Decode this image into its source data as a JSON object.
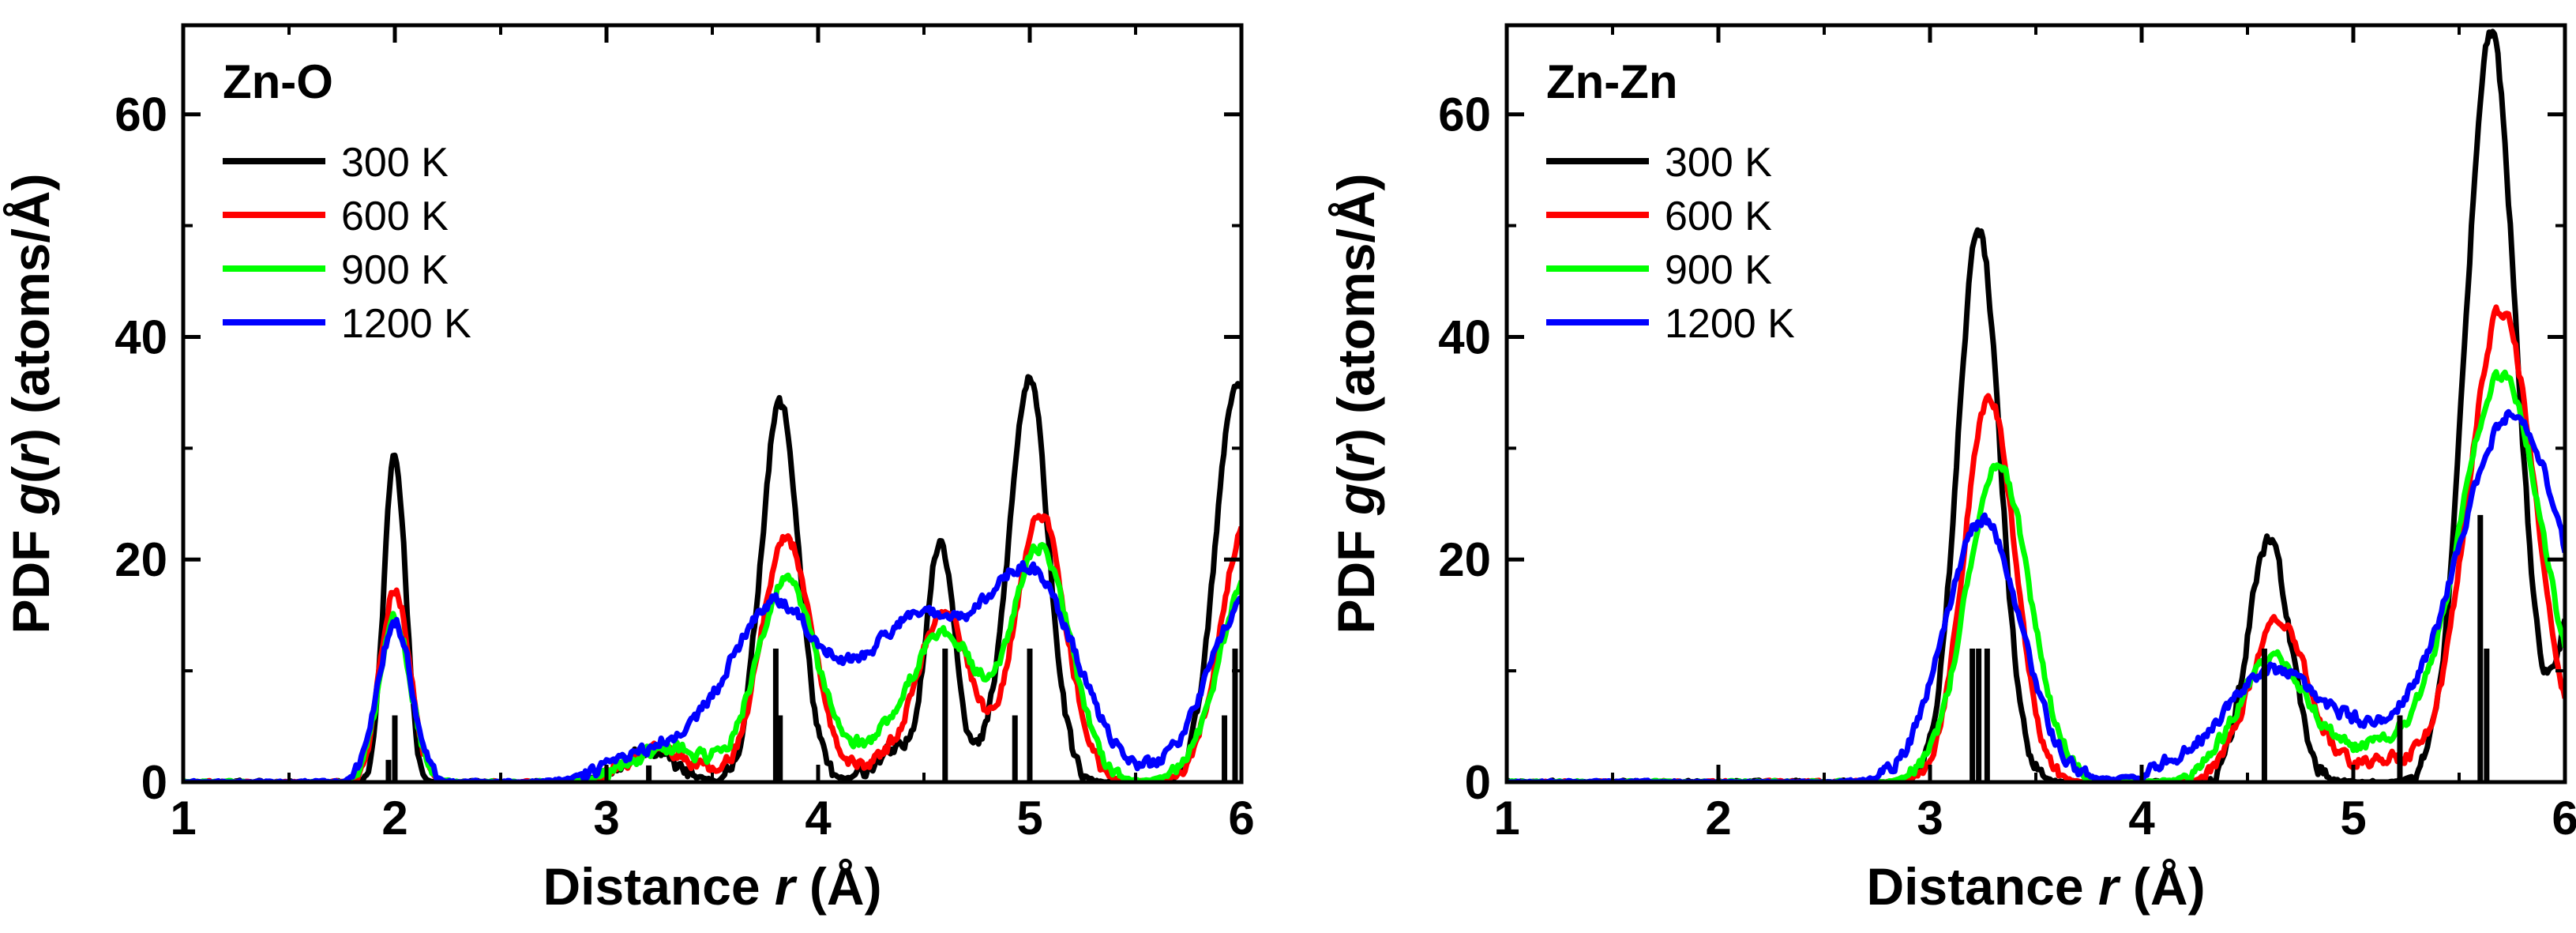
{
  "colors": {
    "300 K": "#000000",
    "600 K": "#ff0000",
    "900 K": "#00ff00",
    "1200 K": "#0000ff"
  },
  "chart_data": [
    {
      "type": "line",
      "title": "Zn-O",
      "xlabel": "Distance r (Å)",
      "ylabel": "PDF g(r) (atoms/Å)",
      "xlabel_parts": [
        "Distance ",
        "r",
        " (Å)"
      ],
      "ylabel_parts": [
        "PDF ",
        "g",
        "(",
        "r",
        ") (atoms/Å)"
      ],
      "xlim": [
        1,
        6
      ],
      "ylim": [
        0,
        68
      ],
      "xticks": [
        1,
        2,
        3,
        4,
        5,
        6
      ],
      "yticks": [
        0,
        20,
        40,
        60
      ],
      "legend": "top-left",
      "series": [
        {
          "name": "300 K",
          "color": "#000000",
          "noise": 0.6,
          "peaks": [
            [
              2.0,
              30,
              0.05
            ],
            [
              3.2,
              2.6,
              0.12
            ],
            [
              3.82,
              34,
              0.09
            ],
            [
              4.58,
              21.5,
              0.07
            ],
            [
              4.35,
              2.5,
              0.1
            ],
            [
              5.0,
              35.5,
              0.09
            ],
            [
              4.85,
              3,
              0.08
            ],
            [
              5.98,
              36,
              0.1
            ]
          ]
        },
        {
          "name": "600 K",
          "color": "#ff0000",
          "noise": 0.5,
          "peaks": [
            [
              2.0,
              17.5,
              0.07
            ],
            [
              3.25,
              3,
              0.15
            ],
            [
              3.85,
              22,
              0.12
            ],
            [
              4.6,
              15,
              0.12
            ],
            [
              5.05,
              24,
              0.12
            ],
            [
              6.02,
              23,
              0.12
            ],
            [
              4.35,
              2,
              0.15
            ]
          ]
        },
        {
          "name": "900 K",
          "color": "#00ff00",
          "noise": 0.5,
          "peaks": [
            [
              2.0,
              14.8,
              0.075
            ],
            [
              3.3,
              3,
              0.18
            ],
            [
              3.85,
              18,
              0.14
            ],
            [
              4.6,
              13,
              0.15
            ],
            [
              5.05,
              21,
              0.14
            ],
            [
              6.05,
              19,
              0.15
            ],
            [
              4.3,
              3,
              0.15
            ]
          ]
        },
        {
          "name": "1200 K",
          "color": "#0000ff",
          "noise": 0.5,
          "peaks": [
            [
              2.0,
              14.3,
              0.08
            ],
            [
              3.35,
              3.5,
              0.25
            ],
            [
              3.8,
              15,
              0.2
            ],
            [
              4.5,
              11,
              0.22
            ],
            [
              5.0,
              18.5,
              0.22
            ],
            [
              6.05,
              17,
              0.2
            ],
            [
              4.25,
              5,
              0.22
            ]
          ]
        }
      ],
      "sticks": [
        [
          1.97,
          2
        ],
        [
          2.0,
          6
        ],
        [
          3.2,
          1.5
        ],
        [
          3.8,
          12
        ],
        [
          3.82,
          6
        ],
        [
          4.6,
          12
        ],
        [
          4.93,
          6
        ],
        [
          5.0,
          12
        ],
        [
          5.92,
          6
        ],
        [
          5.97,
          12
        ]
      ]
    },
    {
      "type": "line",
      "title": "Zn-Zn",
      "xlabel": "Distance r (Å)",
      "ylabel": "PDF g(r) (atoms/Å)",
      "xlabel_parts": [
        "Distance ",
        "r",
        " (Å)"
      ],
      "ylabel_parts": [
        "PDF ",
        "g",
        "(",
        "r",
        ") (atoms/Å)"
      ],
      "xlim": [
        1,
        6
      ],
      "ylim": [
        0,
        68
      ],
      "xticks": [
        1,
        2,
        3,
        4,
        5,
        6
      ],
      "yticks": [
        0,
        20,
        40,
        60
      ],
      "legend": "top-left",
      "series": [
        {
          "name": "300 K",
          "color": "#000000",
          "noise": 0.6,
          "peaks": [
            [
              3.23,
              49.5,
              0.1
            ],
            [
              4.6,
              21.5,
              0.1
            ],
            [
              5.65,
              67,
              0.12
            ],
            [
              6.05,
              16,
              0.08
            ]
          ]
        },
        {
          "name": "600 K",
          "color": "#ff0000",
          "noise": 0.5,
          "peaks": [
            [
              3.28,
              34.5,
              0.12
            ],
            [
              4.65,
              14.5,
              0.14
            ],
            [
              5.7,
              42.5,
              0.16
            ],
            [
              5.15,
              2,
              0.15
            ]
          ]
        },
        {
          "name": "900 K",
          "color": "#00ff00",
          "noise": 0.5,
          "peaks": [
            [
              3.32,
              28.5,
              0.15
            ],
            [
              4.62,
              11,
              0.17
            ],
            [
              5.7,
              36.5,
              0.2
            ],
            [
              5.15,
              3,
              0.2
            ]
          ]
        },
        {
          "name": "1200 K",
          "color": "#0000ff",
          "noise": 0.5,
          "peaks": [
            [
              3.25,
              23.5,
              0.18
            ],
            [
              4.6,
              9.5,
              0.22
            ],
            [
              5.75,
              33,
              0.26
            ],
            [
              5.05,
              3.5,
              0.22
            ],
            [
              4.15,
              1,
              0.15
            ]
          ]
        }
      ],
      "sticks": [
        [
          3.2,
          12
        ],
        [
          3.23,
          12
        ],
        [
          3.27,
          12
        ],
        [
          4.58,
          12
        ],
        [
          5.22,
          6
        ],
        [
          5.6,
          24
        ],
        [
          5.63,
          12
        ]
      ]
    }
  ]
}
